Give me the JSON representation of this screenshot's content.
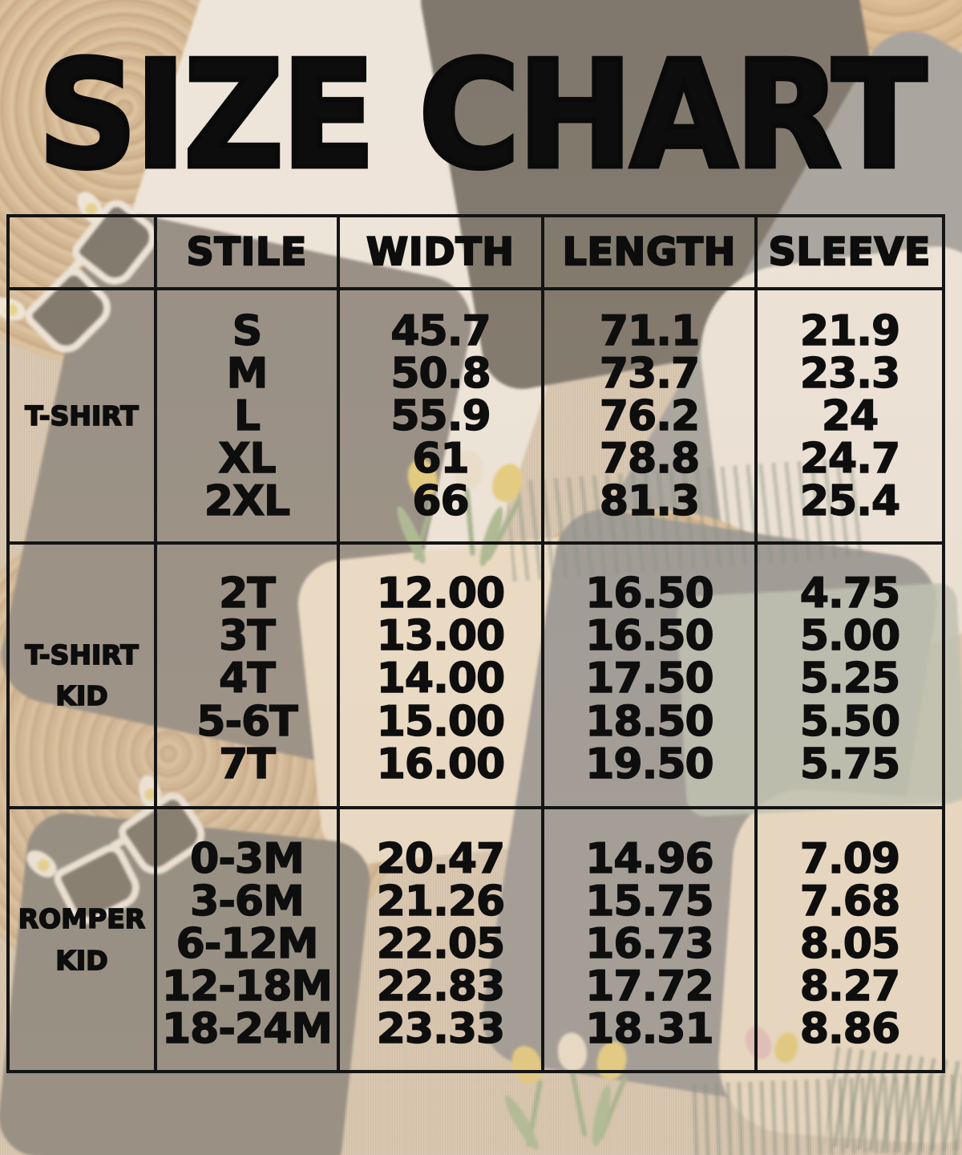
{
  "title": "SIZE CHART",
  "table": {
    "headers": [
      "STILE",
      "WIDTH",
      "LENGTH",
      "SLEEVE"
    ],
    "sections": [
      {
        "label": "T-SHIRT",
        "rows": [
          {
            "size": "S",
            "width": "45.7",
            "length": "71.1",
            "sleeve": "21.9"
          },
          {
            "size": "M",
            "width": "50.8",
            "length": "73.7",
            "sleeve": "23.3"
          },
          {
            "size": "L",
            "width": "55.9",
            "length": "76.2",
            "sleeve": "24"
          },
          {
            "size": "XL",
            "width": "61",
            "length": "78.8",
            "sleeve": "24.7"
          },
          {
            "size": "2XL",
            "width": "66",
            "length": "81.3",
            "sleeve": "25.4"
          }
        ]
      },
      {
        "label": "T-SHIRT\nKID",
        "rows": [
          {
            "size": "2T",
            "width": "12.00",
            "length": "16.50",
            "sleeve": "4.75"
          },
          {
            "size": "3T",
            "width": "13.00",
            "length": "16.50",
            "sleeve": "5.00"
          },
          {
            "size": "4T",
            "width": "14.00",
            "length": "17.50",
            "sleeve": "5.25"
          },
          {
            "size": "5-6T",
            "width": "15.00",
            "length": "18.50",
            "sleeve": "5.50"
          },
          {
            "size": "7T",
            "width": "16.00",
            "length": "19.50",
            "sleeve": "5.75"
          }
        ]
      },
      {
        "label": "ROMPER\nKID",
        "rows": [
          {
            "size": "0-3M",
            "width": "20.47",
            "length": "14.96",
            "sleeve": "7.09"
          },
          {
            "size": "3-6M",
            "width": "21.26",
            "length": "15.75",
            "sleeve": "7.68"
          },
          {
            "size": "6-12M",
            "width": "22.05",
            "length": "16.73",
            "sleeve": "8.05"
          },
          {
            "size": "12-18M",
            "width": "22.83",
            "length": "17.72",
            "sleeve": "8.27"
          },
          {
            "size": "18-24M",
            "width": "23.33",
            "length": "18.31",
            "sleeve": "8.86"
          }
        ]
      }
    ]
  },
  "chart_data": {
    "type": "table",
    "title": "SIZE CHART",
    "columns": [
      "STILE",
      "WIDTH",
      "LENGTH",
      "SLEEVE"
    ],
    "groups": [
      {
        "name": "T-SHIRT",
        "rows": [
          [
            "S",
            45.7,
            71.1,
            21.9
          ],
          [
            "M",
            50.8,
            73.7,
            23.3
          ],
          [
            "L",
            55.9,
            76.2,
            24
          ],
          [
            "XL",
            61,
            78.8,
            24.7
          ],
          [
            "2XL",
            66,
            81.3,
            25.4
          ]
        ]
      },
      {
        "name": "T-SHIRT KID",
        "rows": [
          [
            "2T",
            12.0,
            16.5,
            4.75
          ],
          [
            "3T",
            13.0,
            16.5,
            5.0
          ],
          [
            "4T",
            14.0,
            17.5,
            5.25
          ],
          [
            "5-6T",
            15.0,
            18.5,
            5.5
          ],
          [
            "7T",
            16.0,
            19.5,
            5.75
          ]
        ]
      },
      {
        "name": "ROMPER KID",
        "rows": [
          [
            "0-3M",
            20.47,
            14.96,
            7.09
          ],
          [
            "3-6M",
            21.26,
            15.75,
            7.68
          ],
          [
            "6-12M",
            22.05,
            16.73,
            8.05
          ],
          [
            "12-18M",
            22.83,
            17.72,
            8.27
          ],
          [
            "18-24M",
            23.33,
            18.31,
            8.86
          ]
        ]
      }
    ]
  },
  "palette": {
    "text_black": "#0d0d0d",
    "table_border": "#141414",
    "burlap_beige": "#d4c4ae",
    "white_shirt": "#f7f5f1",
    "black_shirt": "#45443f",
    "gray_shirt": "#757b82",
    "dark_gray_shirt": "#6b6966",
    "cream_shirt": "#f3e7d1",
    "teal_scarf": "#a9bcb1",
    "straw_tan": "#cdab7c",
    "tulip_yellow": "#e6ca5a",
    "tulip_green": "#7fa374"
  },
  "background_props": [
    "woven-placemat",
    "straw-hat",
    "white-tshirt",
    "black-tshirt",
    "gray-tshirt",
    "dark-gray-kid-tshirt",
    "cream-kid-tshirt",
    "white-baby-romper",
    "cream-baby-romper",
    "bunny-ear-sunglasses",
    "tulip-bouquet",
    "teal-fringed-scarf",
    "burlap-fabric"
  ]
}
